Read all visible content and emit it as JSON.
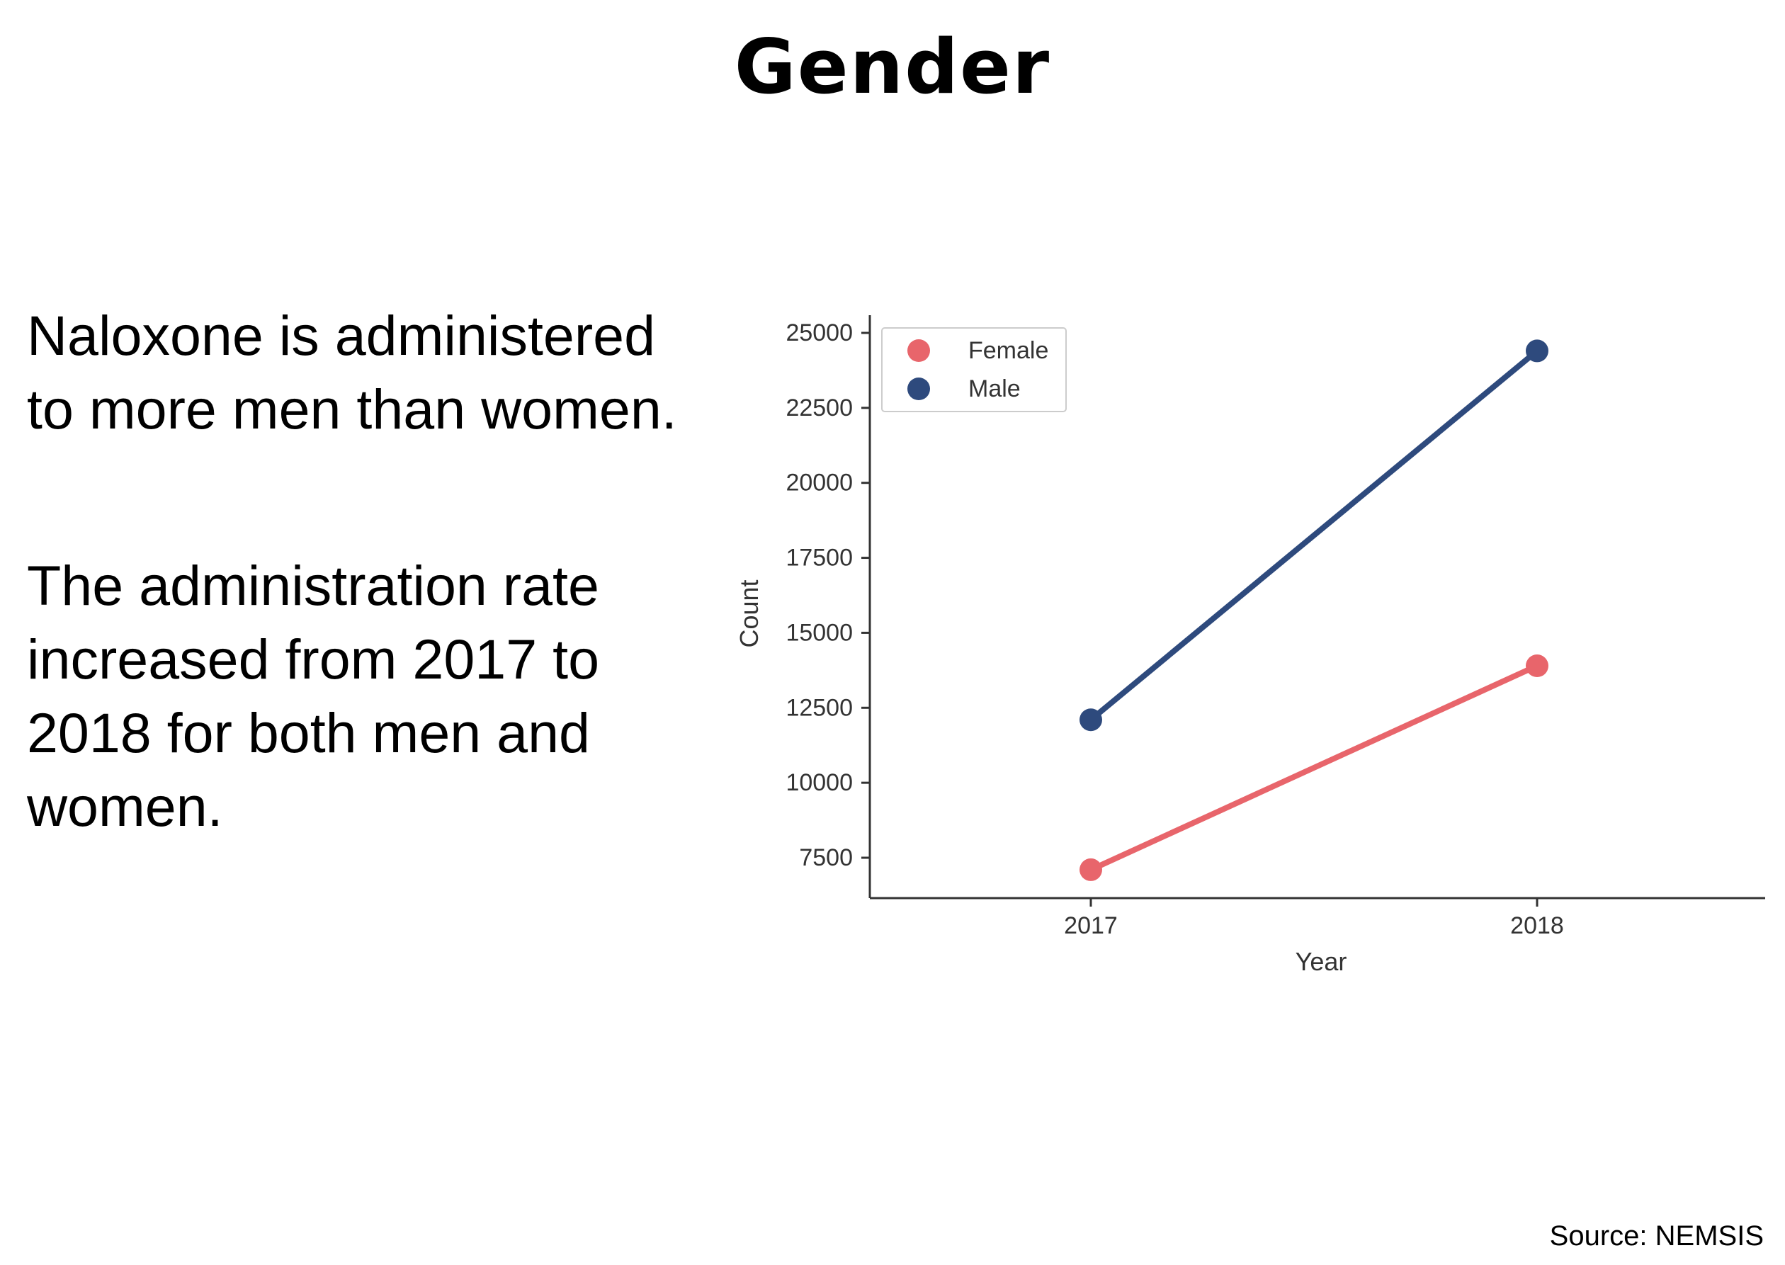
{
  "slide": {
    "title": "Gender",
    "paragraph_1": "Naloxone is administered to more men than women.",
    "paragraph_2": "The administration rate increased from 2017 to 2018 for both men and women.",
    "source": "Source: NEMSIS"
  },
  "colors": {
    "female": "#e8656b",
    "male": "#2e4a7d",
    "axis": "#333333",
    "tick_text": "#333333",
    "legend_border": "#cccccc"
  },
  "chart_data": {
    "type": "line",
    "title": "",
    "xlabel": "Year",
    "ylabel": "Count",
    "x": [
      "2017",
      "2018"
    ],
    "ylim": [
      6200,
      25600
    ],
    "yticks": [
      7500,
      10000,
      12500,
      15000,
      17500,
      20000,
      22500,
      25000
    ],
    "ytick_labels": [
      "7500",
      "10000",
      "12500",
      "15000",
      "17500",
      "20000",
      "22500",
      "25000"
    ],
    "series": [
      {
        "name": "Female",
        "values": [
          7100,
          13900
        ]
      },
      {
        "name": "Male",
        "values": [
          12100,
          24400
        ]
      }
    ],
    "legend_position": "top-left",
    "grid": false
  }
}
